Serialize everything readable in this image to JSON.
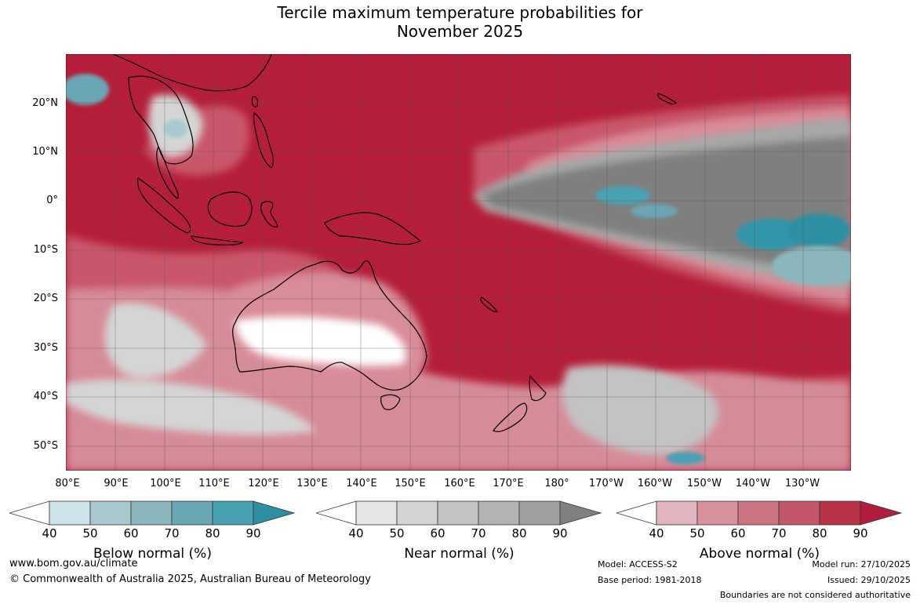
{
  "title_line1": "Tercile maximum temperature probabilities for",
  "title_line2": "November 2025",
  "lat_labels": [
    "20°N",
    "10°N",
    "0°",
    "10°S",
    "20°S",
    "30°S",
    "40°S",
    "50°S"
  ],
  "lon_labels": [
    "80°E",
    "90°E",
    "100°E",
    "110°E",
    "120°E",
    "130°E",
    "140°E",
    "150°E",
    "160°E",
    "170°E",
    "180°",
    "170°W",
    "160°W",
    "150°W",
    "140°W",
    "130°W"
  ],
  "colorbars": [
    {
      "title": "Below normal (%)",
      "ticks": [
        "40",
        "50",
        "60",
        "70",
        "80",
        "90"
      ],
      "colors": [
        "#ffffff",
        "#cde3ea",
        "#a9c9cf",
        "#8cb6bd",
        "#6aa6b3",
        "#48a1b3",
        "#2e8fa3"
      ]
    },
    {
      "title": "Near normal (%)",
      "ticks": [
        "40",
        "50",
        "60",
        "70",
        "80",
        "90"
      ],
      "colors": [
        "#ffffff",
        "#e6e6e6",
        "#d4d4d4",
        "#c3c3c3",
        "#b3b3b3",
        "#a0a0a0",
        "#808080"
      ]
    },
    {
      "title": "Above normal (%)",
      "ticks": [
        "40",
        "50",
        "60",
        "70",
        "80",
        "90"
      ],
      "colors": [
        "#ffffff",
        "#e2b6c0",
        "#d8919d",
        "#cb7580",
        "#c35668",
        "#b83248",
        "#b01e3c"
      ]
    }
  ],
  "footer": {
    "website": "www.bom.gov.au/climate",
    "copyright": "© Commonwealth of Australia 2025, Australian Bureau of Meteorology",
    "model": "Model: ACCESS-S2",
    "base_period": "Base period: 1981-2018",
    "model_run": "Model run: 27/10/2025",
    "issued": "Issued: 29/10/2025",
    "boundaries": "Boundaries are not considered authoritative"
  }
}
